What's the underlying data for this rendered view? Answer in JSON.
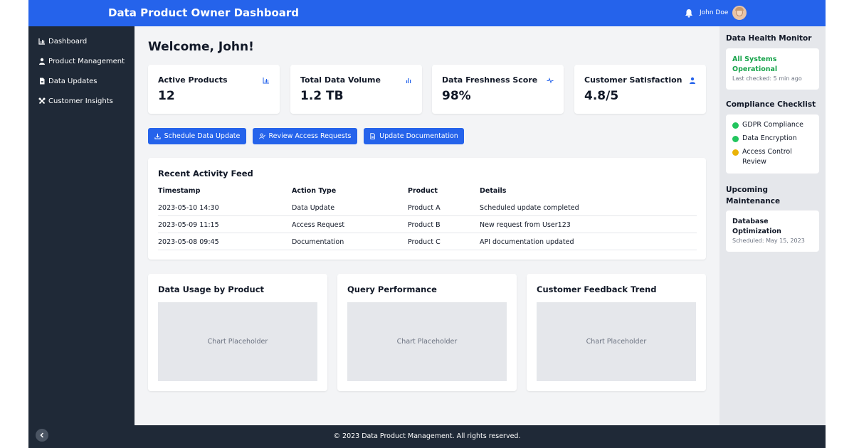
{
  "header": {
    "title": "Data Product Owner Dashboard",
    "user_name": "John Doe"
  },
  "sidebar": {
    "items": [
      {
        "label": "Dashboard",
        "icon": "chart-icon"
      },
      {
        "label": "Product Management",
        "icon": "user-icon"
      },
      {
        "label": "Data Updates",
        "icon": "file-icon"
      },
      {
        "label": "Customer Insights",
        "icon": "tools-icon"
      }
    ]
  },
  "main": {
    "welcome": "Welcome, John!",
    "stats": [
      {
        "label": "Active Products",
        "value": "12",
        "icon": "bar-chart-icon"
      },
      {
        "label": "Total Data Volume",
        "value": "1.2 TB",
        "icon": "small-bar-chart-icon"
      },
      {
        "label": "Data Freshness Score",
        "value": "98%",
        "icon": "pulse-icon"
      },
      {
        "label": "Customer Satisfaction",
        "value": "4.8/5",
        "icon": "user-icon"
      }
    ],
    "actions": [
      {
        "label": "Schedule Data Update",
        "icon": "download-icon"
      },
      {
        "label": "Review Access Requests",
        "icon": "user-check-icon"
      },
      {
        "label": "Update Documentation",
        "icon": "document-icon"
      }
    ],
    "activity": {
      "title": "Recent Activity Feed",
      "columns": [
        "Timestamp",
        "Action Type",
        "Product",
        "Details"
      ],
      "rows": [
        [
          "2023-05-10 14:30",
          "Data Update",
          "Product A",
          "Scheduled update completed"
        ],
        [
          "2023-05-09 11:15",
          "Access Request",
          "Product B",
          "New request from User123"
        ],
        [
          "2023-05-08 09:45",
          "Documentation",
          "Product C",
          "API documentation updated"
        ]
      ]
    },
    "charts": [
      {
        "title": "Data Usage by Product",
        "placeholder": "Chart Placeholder"
      },
      {
        "title": "Query Performance",
        "placeholder": "Chart Placeholder"
      },
      {
        "title": "Customer Feedback Trend",
        "placeholder": "Chart Placeholder"
      }
    ]
  },
  "right_panel": {
    "health": {
      "title": "Data Health Monitor",
      "status": "All Systems Operational",
      "last_checked": "Last checked: 5 min ago"
    },
    "compliance": {
      "title": "Compliance Checklist",
      "items": [
        {
          "label": "GDPR Compliance",
          "color": "#22c55e"
        },
        {
          "label": "Data Encryption",
          "color": "#22c55e"
        },
        {
          "label": "Access Control Review",
          "color": "#eab308"
        }
      ]
    },
    "maintenance": {
      "title": "Upcoming Maintenance",
      "item_title": "Database Optimization",
      "scheduled": "Scheduled: May 15, 2023"
    }
  },
  "footer": {
    "copyright": "© 2023 Data Product Management. All rights reserved."
  },
  "colors": {
    "primary": "#2563eb",
    "sidebar": "#1f2937",
    "success": "#16a34a",
    "warning": "#eab308"
  }
}
